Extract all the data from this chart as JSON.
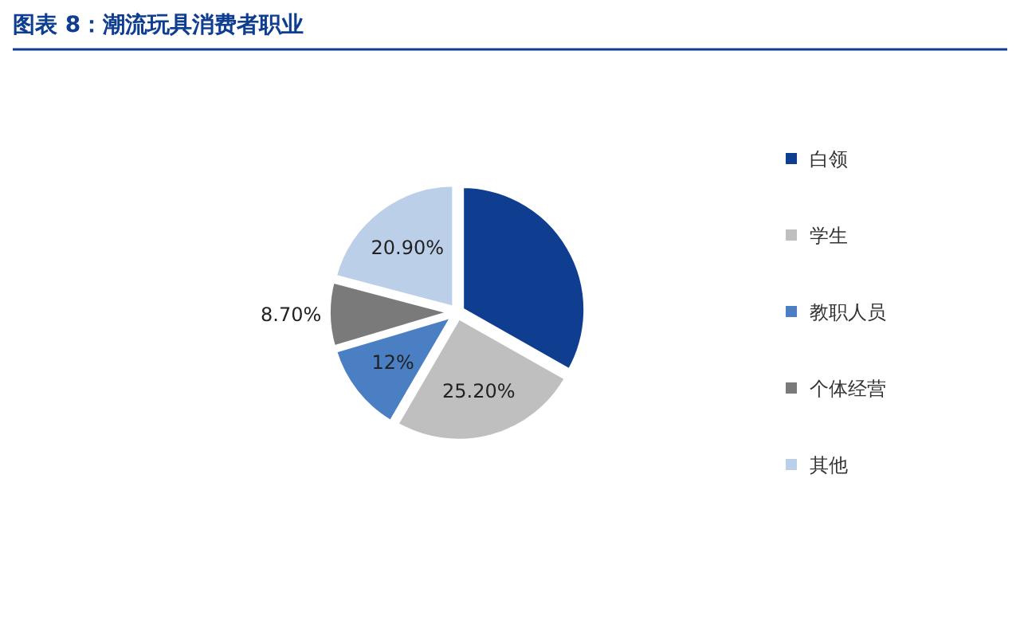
{
  "chart_data": {
    "type": "pie",
    "title": "图表 8：潮流玩具消费者职业",
    "categories": [
      "白领",
      "学生",
      "教职人员",
      "个体经营",
      "其他"
    ],
    "values": [
      33.2,
      25.2,
      12,
      8.7,
      20.9
    ],
    "value_labels": [
      null,
      "25.20%",
      "12%",
      "8.70%",
      "20.90%"
    ],
    "colors": [
      "#0f3e91",
      "#bfbfbf",
      "#4a7fc4",
      "#7a7a7a",
      "#bccfe9"
    ],
    "legend": "right"
  }
}
